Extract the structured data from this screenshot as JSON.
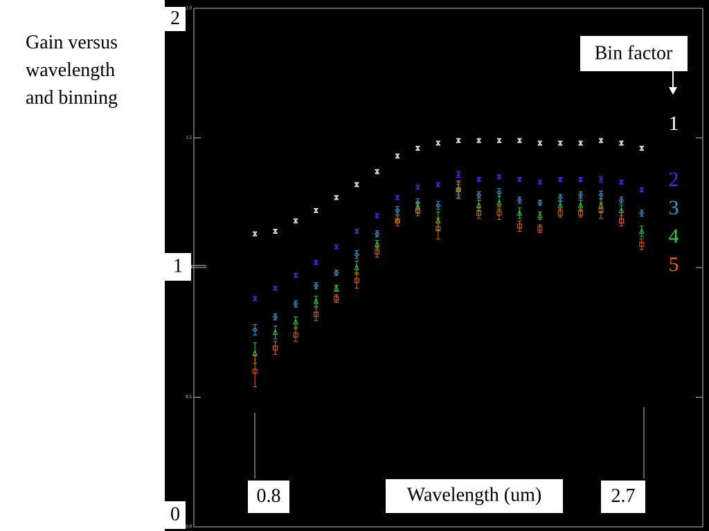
{
  "chart_data": {
    "type": "scatter",
    "title": "Gain versus wavelength and binning",
    "xlabel": "Wavelength (um)",
    "legend_title": "Bin factor",
    "annotations": [
      "2",
      "1",
      "0",
      "0.8",
      "2.7"
    ],
    "x": [
      0.8,
      0.9,
      1.0,
      1.1,
      1.2,
      1.3,
      1.4,
      1.5,
      1.6,
      1.7,
      1.8,
      1.9,
      2.0,
      2.1,
      2.2,
      2.3,
      2.4,
      2.5,
      2.6,
      2.7
    ],
    "xlim": [
      0.5,
      3.0
    ],
    "ylim": [
      0,
      2
    ],
    "yticks": [
      {
        "value": 0,
        "label": "0.0"
      },
      {
        "value": 0.5,
        "label": "0.5"
      },
      {
        "value": 1,
        "label": "1.0"
      },
      {
        "value": 1.5,
        "label": "1.5"
      },
      {
        "value": 2,
        "label": "2.0"
      }
    ],
    "series": [
      {
        "name": "1",
        "color": "#ffffff",
        "marker": "x",
        "values": [
          1.13,
          1.14,
          1.18,
          1.22,
          1.27,
          1.32,
          1.37,
          1.43,
          1.46,
          1.48,
          1.49,
          1.49,
          1.49,
          1.49,
          1.48,
          1.48,
          1.48,
          1.49,
          1.48,
          1.46
        ],
        "errors": [
          0.008,
          0.008,
          0.008,
          0.008,
          0.008,
          0.008,
          0.008,
          0.008,
          0.008,
          0.008,
          0.008,
          0.008,
          0.008,
          0.008,
          0.008,
          0.008,
          0.008,
          0.008,
          0.008,
          0.008
        ]
      },
      {
        "name": "2",
        "color": "#4b2fe0",
        "marker": "x",
        "values": [
          0.88,
          0.92,
          0.97,
          1.02,
          1.08,
          1.14,
          1.2,
          1.27,
          1.31,
          1.32,
          1.36,
          1.34,
          1.35,
          1.34,
          1.33,
          1.34,
          1.34,
          1.34,
          1.33,
          1.3
        ],
        "errors": [
          0.008,
          0.008,
          0.008,
          0.008,
          0.008,
          0.008,
          0.008,
          0.008,
          0.008,
          0.008,
          0.012,
          0.008,
          0.008,
          0.008,
          0.008,
          0.008,
          0.008,
          0.012,
          0.008,
          0.008
        ]
      },
      {
        "name": "3",
        "color": "#3a9ad9",
        "marker": "diamond",
        "values": [
          0.76,
          0.81,
          0.86,
          0.93,
          0.98,
          1.05,
          1.13,
          1.22,
          1.25,
          1.24,
          1.3,
          1.28,
          1.29,
          1.26,
          1.25,
          1.27,
          1.28,
          1.28,
          1.26,
          1.21
        ],
        "errors": [
          0.02,
          0.012,
          0.012,
          0.012,
          0.01,
          0.015,
          0.012,
          0.015,
          0.015,
          0.015,
          0.02,
          0.012,
          0.015,
          0.012,
          0.01,
          0.012,
          0.012,
          0.015,
          0.012,
          0.012
        ]
      },
      {
        "name": "4",
        "color": "#3cc83c",
        "marker": "triangle",
        "values": [
          0.67,
          0.75,
          0.79,
          0.87,
          0.92,
          1.0,
          1.09,
          1.18,
          1.23,
          1.18,
          1.3,
          1.24,
          1.25,
          1.21,
          1.2,
          1.24,
          1.24,
          1.24,
          1.22,
          1.14
        ],
        "errors": [
          0.04,
          0.025,
          0.02,
          0.02,
          0.012,
          0.025,
          0.015,
          0.02,
          0.02,
          0.035,
          0.03,
          0.02,
          0.025,
          0.02,
          0.015,
          0.015,
          0.02,
          0.025,
          0.02,
          0.02
        ]
      },
      {
        "name": "5",
        "color": "#e8641e",
        "marker": "square",
        "values": [
          0.6,
          0.69,
          0.74,
          0.82,
          0.88,
          0.95,
          1.06,
          1.18,
          1.22,
          1.15,
          1.3,
          1.21,
          1.21,
          1.16,
          1.15,
          1.21,
          1.21,
          1.22,
          1.18,
          1.09
        ],
        "errors": [
          0.06,
          0.025,
          0.025,
          0.025,
          0.015,
          0.03,
          0.02,
          0.02,
          0.02,
          0.04,
          0.035,
          0.02,
          0.025,
          0.02,
          0.015,
          0.015,
          0.015,
          0.03,
          0.02,
          0.02
        ]
      }
    ]
  }
}
